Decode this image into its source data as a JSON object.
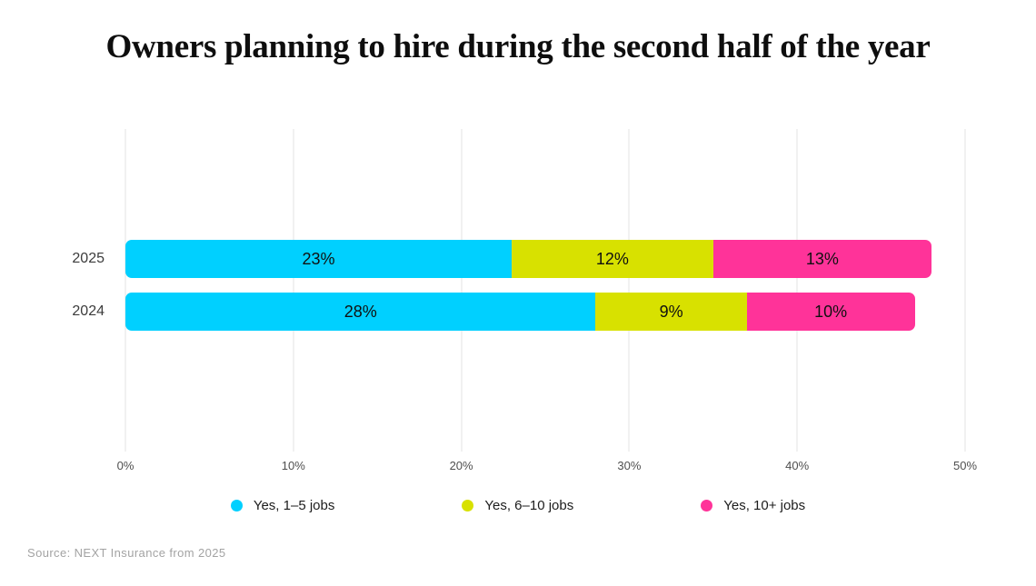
{
  "title": "Owners planning to hire during the second half of the year",
  "source": "Source: NEXT Insurance from 2025",
  "colors": {
    "cyan": "#00D0FF",
    "yellow": "#D8E100",
    "pink": "#FF3399",
    "grid": "#E3E3E3"
  },
  "chart_data": {
    "type": "bar",
    "orientation": "horizontal",
    "stacked": true,
    "title": "Owners planning to hire during the second half of the year",
    "categories": [
      "2025",
      "2024"
    ],
    "series": [
      {
        "name": "Yes, 1–5 jobs",
        "color_key": "cyan",
        "values": [
          23,
          28
        ]
      },
      {
        "name": "Yes, 6–10 jobs",
        "color_key": "yellow",
        "values": [
          12,
          9
        ]
      },
      {
        "name": "Yes, 10+ jobs",
        "color_key": "pink",
        "values": [
          13,
          10
        ]
      }
    ],
    "x_ticks": [
      "0%",
      "10%",
      "20%",
      "30%",
      "40%",
      "50%"
    ],
    "x_max": 50,
    "value_suffix": "%",
    "grid": true,
    "legend_position": "bottom"
  }
}
